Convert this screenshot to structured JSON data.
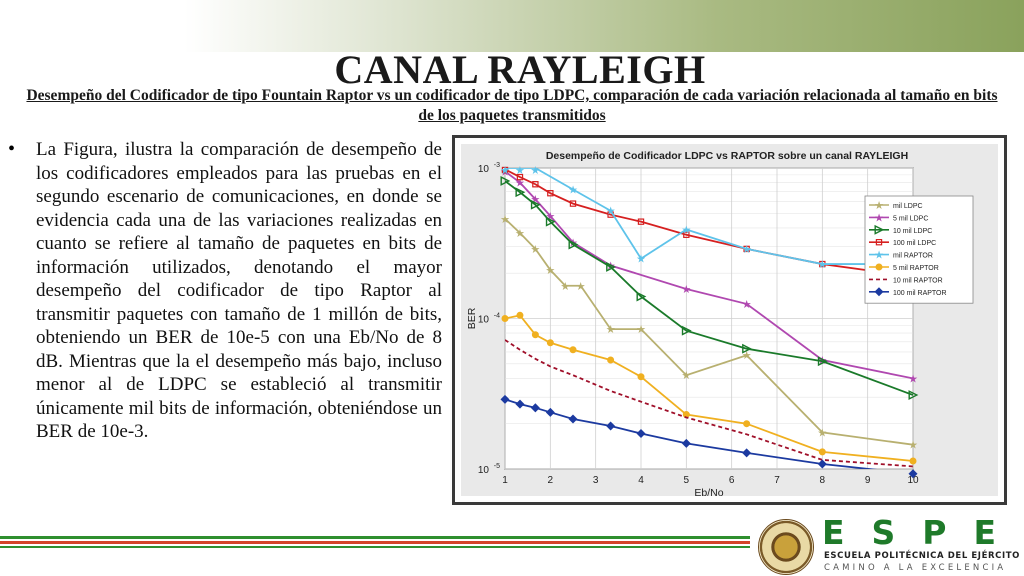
{
  "slide": {
    "title": "CANAL RAYLEIGH",
    "subtitle": "Desempeño del Codificador de tipo Fountain Raptor vs un codificador de tipo LDPC, comparación de cada variación relacionada al tamaño en bits de los paquetes transmitidos",
    "bullet_symbol": "•",
    "bullet_text": "La Figura, ilustra la comparación de desempeño de los codificadores empleados para las pruebas en el segundo escenario de comunicaciones, en donde se evidencia cada una de las variaciones realizadas en cuanto se refiere al tamaño de paquetes en bits de información utilizados, denotando el mayor desempeño del codificador de tipo Raptor al transmitir paquetes con tamaño de 1 millón de bits, obteniendo un BER de 10e-5 con una Eb/No de 8 dB. Mientras que la el desempeño más bajo, incluso menor al de LDPC se estableció al transmitir únicamente mil bits de información, obteniéndose un BER de 10e-3."
  },
  "logo": {
    "name": "ESPE",
    "line1": "ESCUELA POLITÉCNICA DEL EJÉRCITO",
    "line2": "CAMINO A LA EXCELENCIA",
    "seal_icon": "university-seal-icon"
  },
  "colors": {
    "logo_green": "#1f7a2a",
    "stripe_green": "#2f8f2f",
    "stripe_red": "#d4442a"
  },
  "chart_data": {
    "type": "line",
    "title": "Desempeño de Codificador LDPC vs RAPTOR sobre un canal RAYLEIGH",
    "xlabel": "Eb/No",
    "ylabel": "BER",
    "y_scale": "log",
    "xlim": [
      1,
      10
    ],
    "ylim": [
      1e-05,
      0.001
    ],
    "x_ticks": [
      "1",
      "2",
      "3",
      "4",
      "5",
      "6",
      "7",
      "8",
      "9",
      "10"
    ],
    "y_ticks": [
      {
        "base": "10",
        "exp": "-3"
      },
      {
        "base": "10",
        "exp": "-4"
      },
      {
        "base": "10",
        "exp": "-5"
      }
    ],
    "grid": true,
    "legend_position": "top-right",
    "series": [
      {
        "name": "mil LDPC",
        "color": "#b8b070",
        "dash": "",
        "marker": "star",
        "x": [
          1,
          1.33,
          1.67,
          2,
          2.33,
          2.67,
          3.33,
          4,
          5,
          6.33,
          8,
          10
        ],
        "y": [
          0.00046,
          0.00037,
          0.00029,
          0.00021,
          0.000165,
          0.000165,
          8.5e-05,
          8.5e-05,
          4.2e-05,
          5.7e-05,
          1.75e-05,
          1.45e-05
        ]
      },
      {
        "name": "5 mil LDPC",
        "color": "#b048b0",
        "dash": "",
        "marker": "star",
        "x": [
          1,
          1.33,
          1.67,
          2,
          2.5,
          3.33,
          5,
          6.33,
          8,
          10
        ],
        "y": [
          0.00095,
          0.0008,
          0.00062,
          0.00048,
          0.00032,
          0.000225,
          0.000157,
          0.000125,
          5.3e-05,
          4e-05
        ]
      },
      {
        "name": "10 mil LDPC",
        "color": "#1a7a2a",
        "dash": "",
        "marker": "triangle",
        "x": [
          1,
          1.33,
          1.67,
          2,
          2.5,
          3.33,
          4,
          5,
          6.33,
          8,
          10
        ],
        "y": [
          0.00082,
          0.00069,
          0.00057,
          0.00044,
          0.00031,
          0.00022,
          0.00014,
          8.3e-05,
          6.3e-05,
          5.2e-05,
          3.1e-05
        ]
      },
      {
        "name": "100 mil LDPC",
        "color": "#d62020",
        "dash": "",
        "marker": "square",
        "x": [
          1,
          1.33,
          1.67,
          2,
          2.5,
          3.33,
          4,
          5,
          6.33,
          8,
          10
        ],
        "y": [
          0.00098,
          0.00087,
          0.00078,
          0.00068,
          0.00058,
          0.00049,
          0.00044,
          0.00036,
          0.00029,
          0.00023,
          0.00019
        ]
      },
      {
        "name": "mil RAPTOR",
        "color": "#5ec3ea",
        "dash": "",
        "marker": "star",
        "x": [
          1,
          1.33,
          1.67,
          2.5,
          3.33,
          4,
          5,
          6.33,
          8,
          10
        ],
        "y": [
          0.0011,
          0.00105,
          0.00102,
          0.00072,
          0.00052,
          0.00025,
          0.00039,
          0.00029,
          0.00023,
          0.00023
        ]
      },
      {
        "name": "5 mil RAPTOR",
        "color": "#f0b020",
        "dash": "",
        "marker": "circle",
        "x": [
          1,
          1.33,
          1.67,
          2,
          2.5,
          3.33,
          4,
          5,
          6.33,
          8,
          10
        ],
        "y": [
          0.0001,
          0.000105,
          7.8e-05,
          6.9e-05,
          6.2e-05,
          5.3e-05,
          4.1e-05,
          2.3e-05,
          2e-05,
          1.3e-05,
          1.13e-05
        ]
      },
      {
        "name": "10 mil RAPTOR",
        "color": "#a0102a",
        "dash": "4,3",
        "marker": "none",
        "x": [
          1,
          1.33,
          1.67,
          2,
          2.5,
          3.33,
          4,
          5,
          6.33,
          8,
          10
        ],
        "y": [
          7.2e-05,
          6.2e-05,
          5.4e-05,
          4.8e-05,
          4.2e-05,
          3.3e-05,
          2.8e-05,
          2.2e-05,
          1.7e-05,
          1.15e-05,
          1.04e-05
        ]
      },
      {
        "name": "100 mil RAPTOR",
        "color": "#1c3aa0",
        "dash": "",
        "marker": "diamond",
        "x": [
          1,
          1.33,
          1.67,
          2,
          2.5,
          3.33,
          4,
          5,
          6.33,
          8,
          10
        ],
        "y": [
          2.9e-05,
          2.7e-05,
          2.55e-05,
          2.38e-05,
          2.15e-05,
          1.93e-05,
          1.72e-05,
          1.48e-05,
          1.28e-05,
          1.08e-05,
          9.3e-06
        ]
      }
    ]
  }
}
